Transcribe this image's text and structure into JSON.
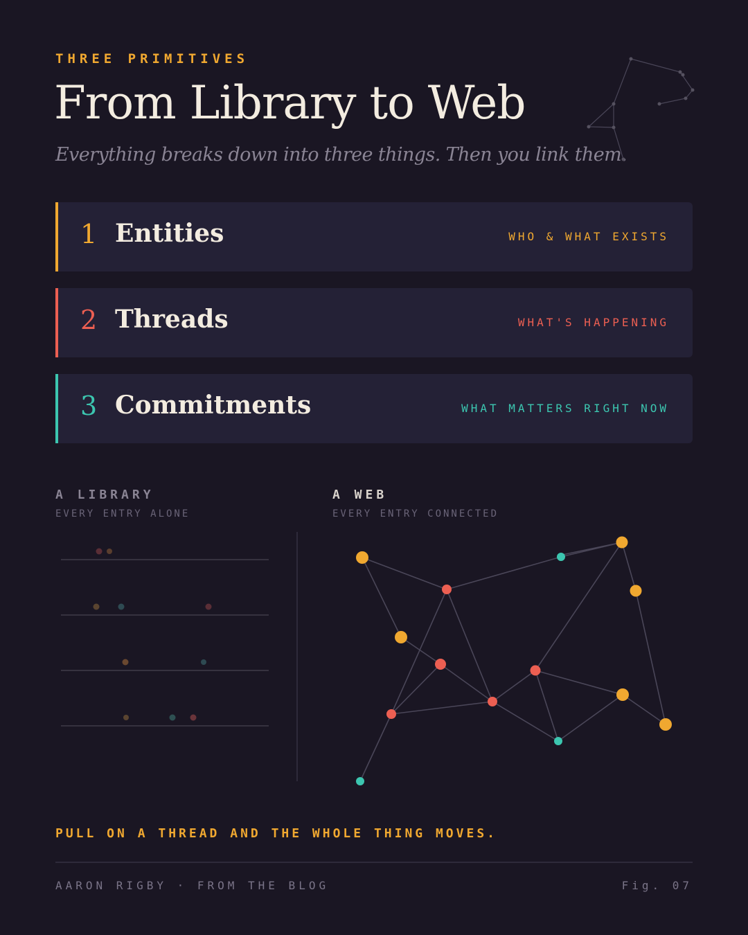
{
  "header": {
    "eyebrow": "THREE PRIMITIVES",
    "title": "From Library to Web",
    "subtitle": "Everything breaks down into three things. Then you link them."
  },
  "primitives": [
    {
      "number": "1",
      "name": "Entities",
      "tag": "WHO & WHAT EXISTS",
      "color": "#f0a830"
    },
    {
      "number": "2",
      "name": "Threads",
      "tag": "WHAT'S HAPPENING",
      "color": "#ec5f52"
    },
    {
      "number": "3",
      "name": "Commitments",
      "tag": "WHAT MATTERS RIGHT NOW",
      "color": "#3cc6b0"
    }
  ],
  "library": {
    "title": "A LIBRARY",
    "subtitle": "EVERY ENTRY ALONE",
    "title_color": "#8a8494"
  },
  "web": {
    "title": "A WEB",
    "subtitle": "EVERY ENTRY CONNECTED",
    "title_color": "#d9d3cc"
  },
  "tagline": "PULL ON A THREAD AND THE WHOLE THING MOVES.",
  "footer": {
    "author": "AARON RIGBY · FROM THE BLOG",
    "figure": "Fig. 07"
  }
}
